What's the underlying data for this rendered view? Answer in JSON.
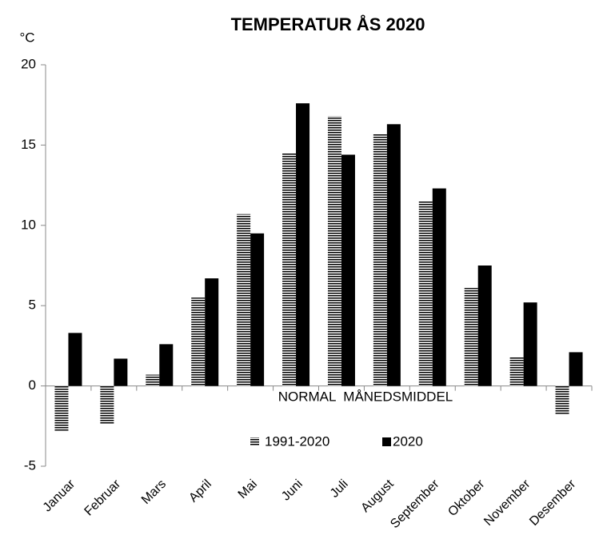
{
  "chart_data": {
    "type": "bar",
    "title": "TEMPERATUR ÅS 2020",
    "y_unit": "°C",
    "annotation": "NORMAL  MÅNEDSMIDDEL",
    "categories": [
      "Januar",
      "Februar",
      "Mars",
      "April",
      "Mai",
      "Juni",
      "Juli",
      "August",
      "September",
      "Oktober",
      "November",
      "Desember"
    ],
    "series": [
      {
        "name": "1991-2020",
        "color": "#000000",
        "pattern": "horizontal-lines",
        "values": [
          -2.8,
          -2.4,
          0.7,
          5.5,
          10.7,
          14.5,
          16.8,
          15.7,
          11.5,
          6.1,
          1.8,
          -1.8
        ]
      },
      {
        "name": "2020",
        "color": "#000000",
        "values": [
          3.3,
          1.7,
          2.6,
          6.7,
          9.5,
          17.6,
          14.4,
          16.3,
          12.3,
          7.5,
          5.2,
          2.1
        ]
      }
    ],
    "ylim": [
      -5,
      20
    ],
    "yticks": [
      -5,
      0,
      5,
      10,
      15,
      20
    ],
    "grid": false
  }
}
